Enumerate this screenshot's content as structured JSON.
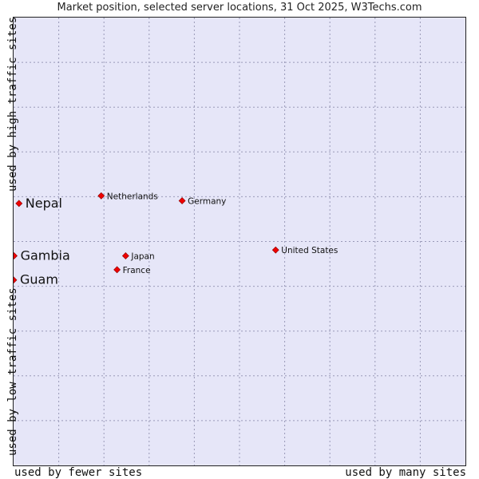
{
  "chart_data": {
    "type": "scatter",
    "title": "Market position, selected server locations, 31 Oct 2025, W3Techs.com",
    "xlabel_left": "used by fewer sites",
    "xlabel_right": "used by many sites",
    "ylabel_top": "used by high traffic sites",
    "ylabel_bottom": "used by low traffic sites",
    "xlim": [
      0,
      100
    ],
    "ylim": [
      0,
      100
    ],
    "grid": true,
    "highlighted": [
      {
        "label": "Nepal",
        "x": 1.2,
        "y": 58.5
      },
      {
        "label": "Gambia",
        "x": 0.1,
        "y": 46.8
      },
      {
        "label": "Guam",
        "x": 0.0,
        "y": 41.4
      }
    ],
    "points": [
      {
        "label": "Netherlands",
        "x": 19.4,
        "y": 60.2
      },
      {
        "label": "Germany",
        "x": 37.3,
        "y": 59.1
      },
      {
        "label": "United States",
        "x": 58.0,
        "y": 48.1
      },
      {
        "label": "Japan",
        "x": 24.8,
        "y": 46.8
      },
      {
        "label": "France",
        "x": 22.9,
        "y": 43.7
      }
    ]
  },
  "colors": {
    "point": "#ee0000",
    "grid": "#9a9ab8"
  }
}
